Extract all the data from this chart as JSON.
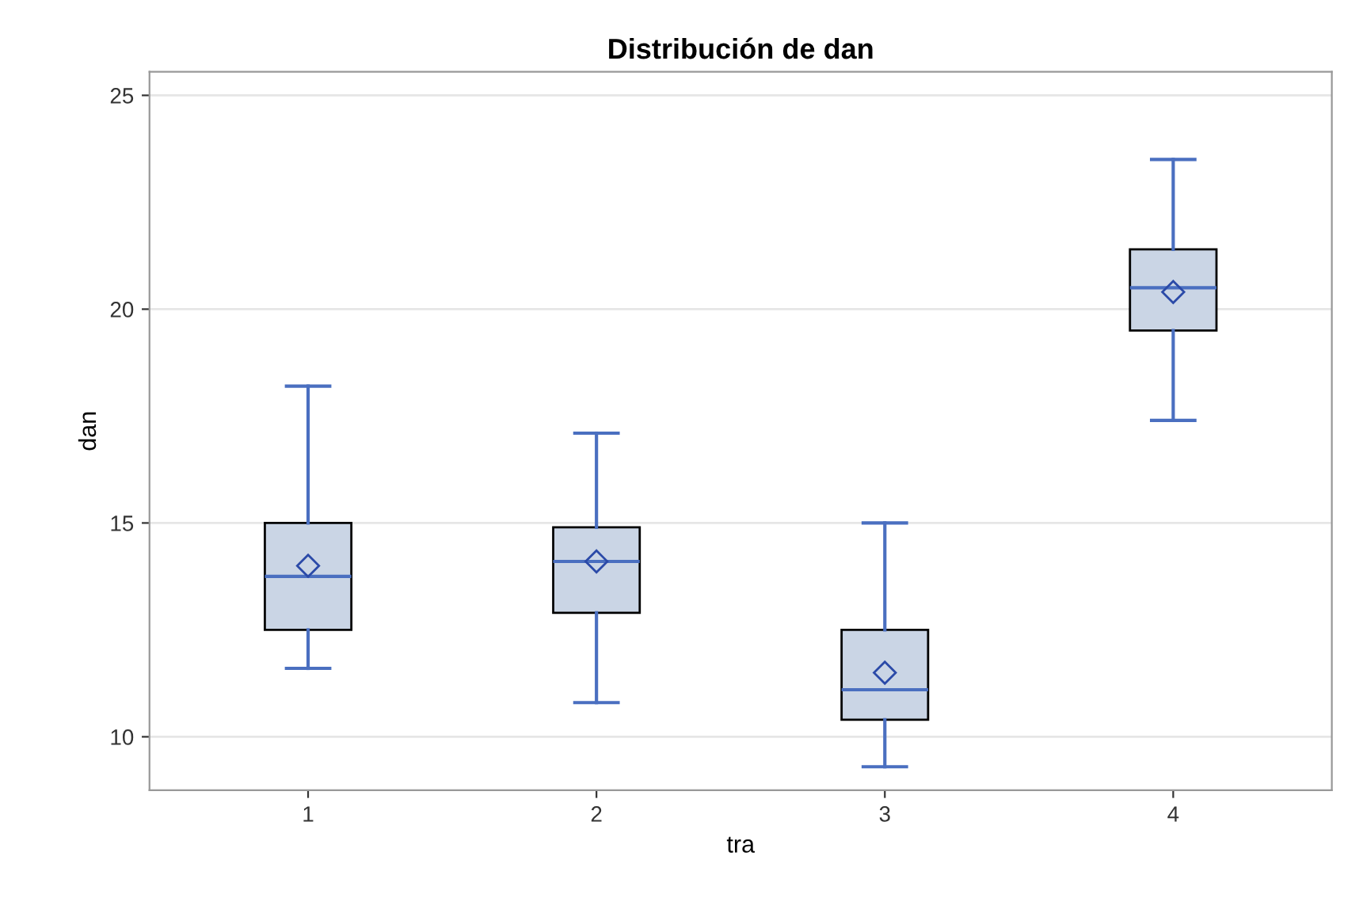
{
  "chart_data": {
    "type": "box",
    "title": "Distribución de dan",
    "xlabel": "tra",
    "ylabel": "dan",
    "categories": [
      "1",
      "2",
      "3",
      "4"
    ],
    "boxes": [
      {
        "low": 11.6,
        "q1": 12.5,
        "median": 13.75,
        "q3": 15.0,
        "high": 18.2,
        "mean": 14.0
      },
      {
        "low": 10.8,
        "q1": 12.9,
        "median": 14.1,
        "q3": 14.9,
        "high": 17.1,
        "mean": 14.1
      },
      {
        "low": 9.3,
        "q1": 10.4,
        "median": 11.1,
        "q3": 12.5,
        "high": 15.0,
        "mean": 11.5
      },
      {
        "low": 17.4,
        "q1": 19.5,
        "median": 20.5,
        "q3": 21.4,
        "high": 23.5,
        "mean": 20.4
      }
    ],
    "color": "#cad5e5",
    "ylim": [
      8.75,
      25.55
    ],
    "yticks": [
      10,
      15,
      20,
      25
    ],
    "grid": "y"
  }
}
